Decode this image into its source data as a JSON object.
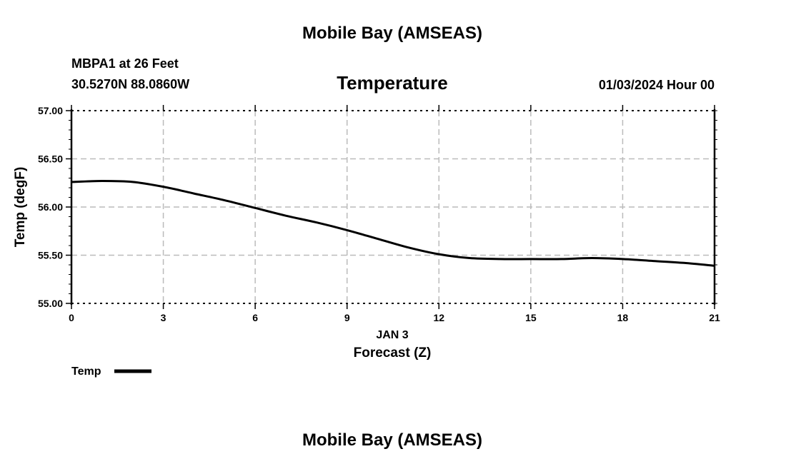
{
  "header": {
    "title": "Mobile Bay (AMSEAS)",
    "station": "MBPA1 at 26 Feet",
    "coords": "30.5270N  88.0860W",
    "variable": "Temperature",
    "datetime": "01/03/2024 Hour 00"
  },
  "footer": {
    "title": "Mobile Bay (AMSEAS)"
  },
  "legend": {
    "label": "Temp",
    "color": "#000000"
  },
  "chart_data": {
    "type": "line",
    "title": "Temperature",
    "xlabel": "Forecast (Z)",
    "xlabel_date": "JAN 3",
    "ylabel": "Temp (degF)",
    "xlim": [
      0,
      21
    ],
    "ylim": [
      55.0,
      57.0
    ],
    "xticks": [
      "0",
      "3",
      "6",
      "9",
      "12",
      "15",
      "18",
      "21"
    ],
    "yticks": [
      "55.00",
      "55.50",
      "56.00",
      "56.50",
      "57.00"
    ],
    "grid": true,
    "legend_position": "bottom-left",
    "series": [
      {
        "name": "Temp",
        "x": [
          0,
          1,
          2,
          3,
          4,
          5,
          6,
          7,
          8,
          9,
          10,
          11,
          12,
          13,
          14,
          15,
          16,
          17,
          18,
          19,
          20,
          21
        ],
        "values": [
          56.26,
          56.27,
          56.26,
          56.21,
          56.14,
          56.07,
          55.99,
          55.91,
          55.84,
          55.76,
          55.67,
          55.58,
          55.51,
          55.47,
          55.46,
          55.46,
          55.46,
          55.47,
          55.46,
          55.44,
          55.42,
          55.39
        ]
      }
    ]
  }
}
